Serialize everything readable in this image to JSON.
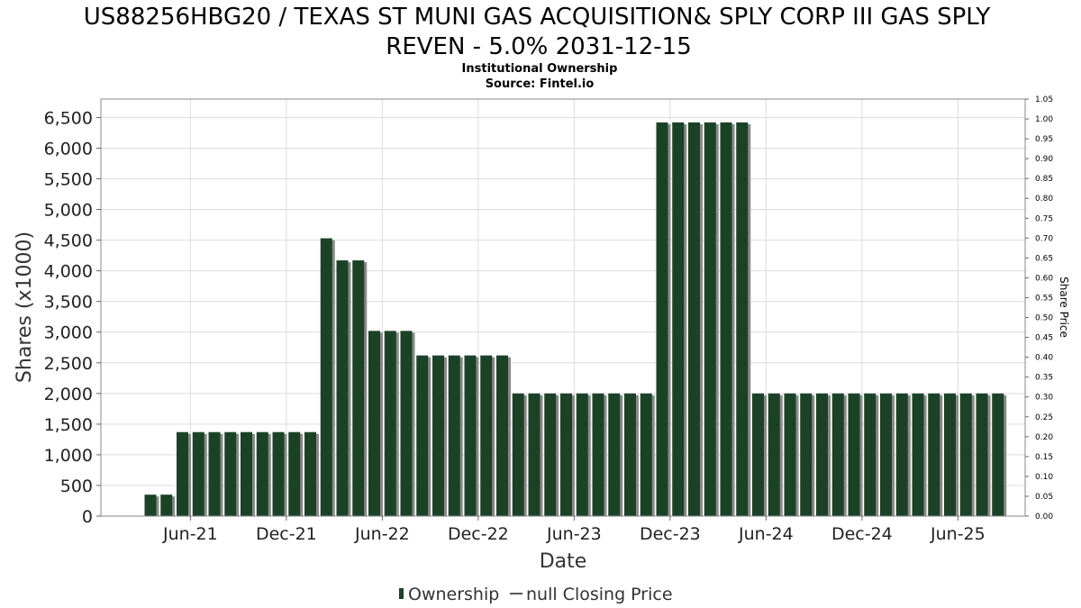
{
  "chart_data": {
    "type": "bar",
    "title_lines": [
      "US88256HBG20 / TEXAS ST MUNI GAS ACQUISITION& SPLY CORP III GAS SPLY",
      "REVEN - 5.0% 2031-12-15"
    ],
    "subtitle_lines": [
      "Institutional Ownership",
      "Source: Fintel.io"
    ],
    "xlabel": "Date",
    "ylabel": "Shares (x1000)",
    "ylabel_right": "Share Price",
    "ylim": [
      0,
      6800
    ],
    "ylim_right": [
      0,
      1.05
    ],
    "y_ticks": [
      0,
      500,
      1000,
      1500,
      2000,
      2500,
      3000,
      3500,
      4000,
      4500,
      5000,
      5500,
      6000,
      6500
    ],
    "y_tick_labels": [
      "0",
      "500",
      "1,000",
      "1,500",
      "2,000",
      "2,500",
      "3,000",
      "3,500",
      "4,000",
      "4,500",
      "5,000",
      "5,500",
      "6,000",
      "6,500"
    ],
    "y_ticks_right": [
      "0.00",
      "0.05",
      "0.10",
      "0.15",
      "0.20",
      "0.25",
      "0.30",
      "0.35",
      "0.40",
      "0.45",
      "0.50",
      "0.55",
      "0.60",
      "0.65",
      "0.70",
      "0.75",
      "0.80",
      "0.85",
      "0.90",
      "0.95",
      "1.00",
      "1.05"
    ],
    "x_tick_labels": [
      "Jun-21",
      "Dec-21",
      "Jun-22",
      "Dec-22",
      "Jun-23",
      "Dec-23",
      "Jun-24",
      "Dec-24",
      "Jun-25"
    ],
    "x_tick_bar_positions": [
      2.5,
      8.5,
      14.5,
      20.5,
      26.5,
      32.5,
      38.5,
      44.5,
      50.5
    ],
    "grid": true,
    "series": [
      {
        "name": "Ownership",
        "color": "#1b4226",
        "shadow_color": "#8a8a8a",
        "values": [
          350,
          350,
          1370,
          1370,
          1370,
          1370,
          1370,
          1370,
          1370,
          1370,
          1370,
          4530,
          4170,
          4170,
          3020,
          3020,
          3020,
          2620,
          2620,
          2620,
          2620,
          2620,
          2620,
          2000,
          2000,
          2000,
          2000,
          2000,
          2000,
          2000,
          2000,
          2000,
          6420,
          6420,
          6420,
          6420,
          6420,
          6420,
          2000,
          2000,
          2000,
          2000,
          2000,
          2000,
          2000,
          2000,
          2000,
          2000,
          2000,
          2000,
          2000,
          2000,
          2000,
          2000
        ]
      },
      {
        "name": "null Closing Price",
        "color": "#555555",
        "values": []
      }
    ],
    "legend_position": "bottom-center"
  }
}
